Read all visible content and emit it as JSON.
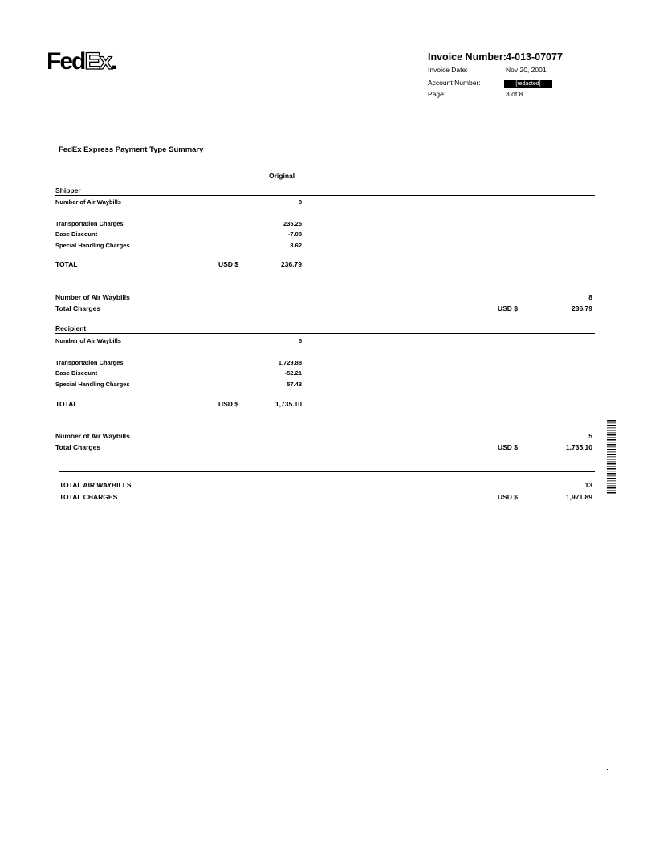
{
  "logo": {
    "text": "FedEx",
    "part1": "Fed",
    "part2": "Ex",
    "dot": "."
  },
  "header": {
    "invoice_number_label": "Invoice Number:",
    "invoice_number": "4-013-07077",
    "invoice_date_label": "Invoice Date:",
    "invoice_date": "Nov 20, 2001",
    "account_number_label": "Account Number:",
    "account_number": "[redacted]",
    "page_label": "Page:",
    "page": "3 of 8"
  },
  "title": "FedEx Express Payment Type Summary",
  "column_header": "Original",
  "sections": [
    {
      "name": "Shipper",
      "waybills_label": "Number of Air Waybills",
      "waybills": "8",
      "rows": [
        {
          "label": "Transportation Charges",
          "value": "235.25"
        },
        {
          "label": "Base Discount",
          "value": "-7.08"
        },
        {
          "label": "Special Handling Charges",
          "value": "8.62"
        }
      ],
      "total_label": "TOTAL",
      "currency": "USD $",
      "total": "236.79",
      "summary_waybills_label": "Number of Air Waybills",
      "summary_waybills": "8",
      "summary_charges_label": "Total Charges",
      "summary_currency": "USD $",
      "summary_charges": "236.79"
    },
    {
      "name": "Recipient",
      "waybills_label": "Number of Air Waybills",
      "waybills": "5",
      "rows": [
        {
          "label": "Transportation Charges",
          "value": "1,729.88"
        },
        {
          "label": "Base Discount",
          "value": "-52.21"
        },
        {
          "label": "Special Handling Charges",
          "value": "57.43"
        }
      ],
      "total_label": "TOTAL",
      "currency": "USD $",
      "total": "1,735.10",
      "summary_waybills_label": "Number of Air Waybills",
      "summary_waybills": "5",
      "summary_charges_label": "Total Charges",
      "summary_currency": "USD $",
      "summary_charges": "1,735.10"
    }
  ],
  "grand_total": {
    "waybills_label": "TOTAL AIR WAYBILLS",
    "waybills": "13",
    "charges_label": "TOTAL CHARGES",
    "currency": "USD $",
    "charges": "1,971.89"
  }
}
